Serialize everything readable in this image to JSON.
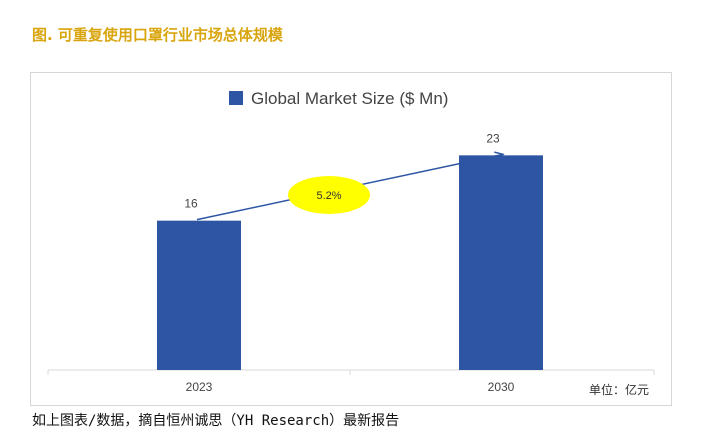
{
  "figure_title": "图. 可重复使用口罩行业市场总体规模",
  "source_note": "如上图表/数据，摘自恒州诚思（YH Research）最新报告",
  "chart_data": {
    "type": "bar",
    "categories": [
      "2023",
      "2030"
    ],
    "series": [
      {
        "name": "Global Market Size ($ Mn)",
        "values": [
          16,
          23
        ],
        "color": "#2e55a3"
      }
    ],
    "ylim": [
      0,
      27
    ],
    "grid": false,
    "legend": "top-center",
    "unit_label": "单位：亿元",
    "annotation": {
      "text": "5.2%",
      "kind": "growth-ellipse",
      "fill": "#ffff00"
    }
  }
}
